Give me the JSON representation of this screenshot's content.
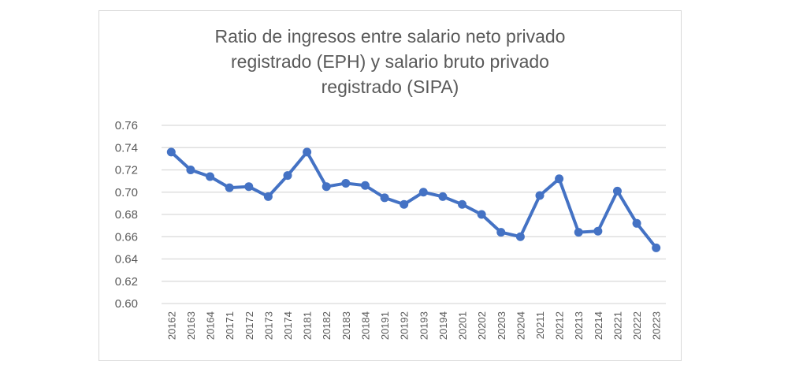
{
  "chart_data": {
    "type": "line",
    "title": "Ratio de ingresos entre salario neto privado registrado (EPH) y salario bruto privado registrado (SIPA)",
    "title_lines": [
      "Ratio de ingresos entre salario neto privado",
      "registrado (EPH) y salario bruto privado",
      "registrado (SIPA)"
    ],
    "xlabel": "",
    "ylabel": "",
    "ylim": [
      0.6,
      0.76
    ],
    "yticks": [
      "0.60",
      "0.62",
      "0.64",
      "0.66",
      "0.68",
      "0.70",
      "0.72",
      "0.74",
      "0.76"
    ],
    "grid": true,
    "color": "#4472c4",
    "categories": [
      "20162",
      "20163",
      "20164",
      "20171",
      "20172",
      "20173",
      "20174",
      "20181",
      "20182",
      "20183",
      "20184",
      "20191",
      "20192",
      "20193",
      "20194",
      "20201",
      "20202",
      "20203",
      "20204",
      "20211",
      "20212",
      "20213",
      "20214",
      "20221",
      "20222",
      "20223"
    ],
    "values": [
      0.736,
      0.72,
      0.714,
      0.704,
      0.705,
      0.696,
      0.715,
      0.736,
      0.705,
      0.708,
      0.706,
      0.695,
      0.689,
      0.7,
      0.696,
      0.689,
      0.68,
      0.664,
      0.66,
      0.697,
      0.712,
      0.664,
      0.665,
      0.701,
      0.672,
      0.65
    ]
  }
}
